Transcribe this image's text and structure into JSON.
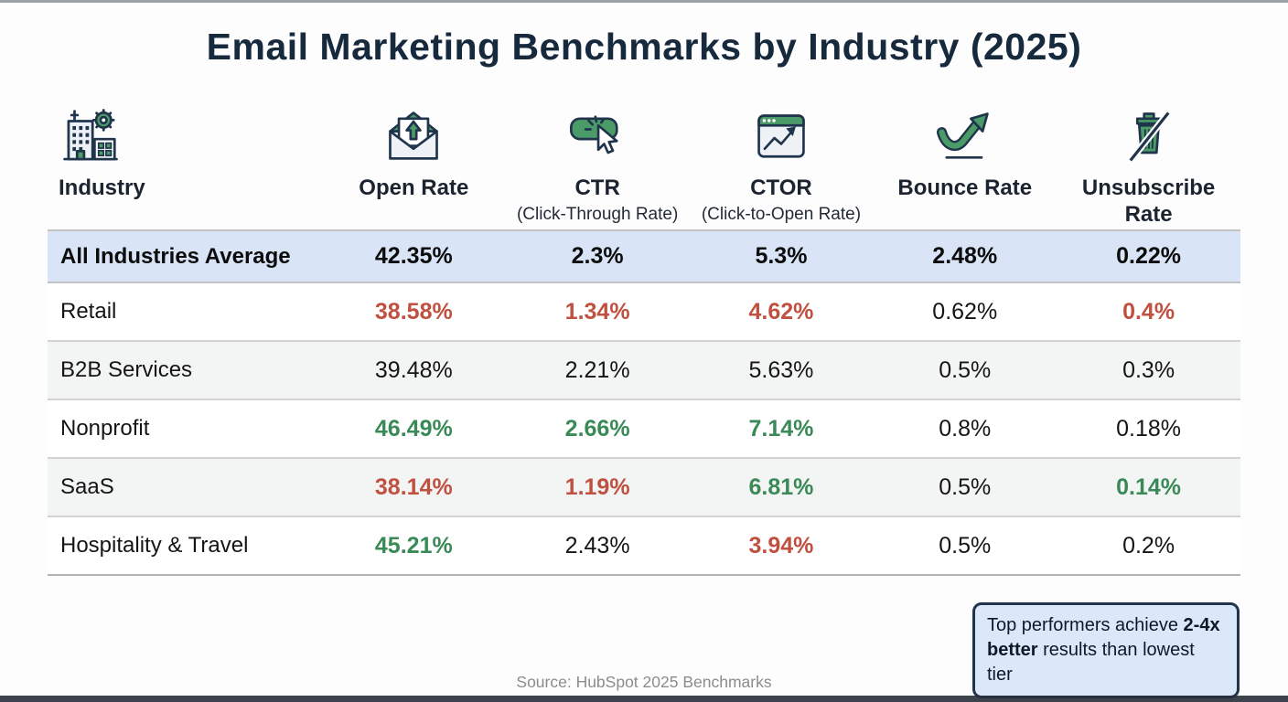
{
  "title": "Email Marketing Benchmarks by Industry (2025)",
  "columns": [
    {
      "label": "Industry",
      "icon": "industry-buildings-icon"
    },
    {
      "label": "Open Rate",
      "icon": "open-envelope-arrow-icon"
    },
    {
      "label": "CTR",
      "sublabel": "(Click-Through Rate)",
      "icon": "click-cursor-button-icon"
    },
    {
      "label": "CTOR",
      "sublabel": "(Click-to-Open Rate)",
      "icon": "browser-chart-icon"
    },
    {
      "label": "Bounce Rate",
      "icon": "bounce-arrow-icon"
    },
    {
      "label": "Unsubscribe Rate",
      "icon": "trash-slash-icon"
    }
  ],
  "rows": [
    {
      "industry": "All Industries Average",
      "highlight": true,
      "shade": false,
      "values": [
        {
          "v": "42.35%",
          "c": "avg"
        },
        {
          "v": "2.3%",
          "c": "avg"
        },
        {
          "v": "5.3%",
          "c": "avg"
        },
        {
          "v": "2.48%",
          "c": "avg"
        },
        {
          "v": "0.22%",
          "c": "avg"
        }
      ]
    },
    {
      "industry": "Retail",
      "highlight": false,
      "shade": false,
      "values": [
        {
          "v": "38.58%",
          "c": "bad"
        },
        {
          "v": "1.34%",
          "c": "bad"
        },
        {
          "v": "4.62%",
          "c": "bad"
        },
        {
          "v": "0.62%",
          "c": "neutral"
        },
        {
          "v": "0.4%",
          "c": "bad"
        }
      ]
    },
    {
      "industry": "B2B Services",
      "highlight": false,
      "shade": true,
      "values": [
        {
          "v": "39.48%",
          "c": "neutral"
        },
        {
          "v": "2.21%",
          "c": "neutral"
        },
        {
          "v": "5.63%",
          "c": "neutral"
        },
        {
          "v": "0.5%",
          "c": "neutral"
        },
        {
          "v": "0.3%",
          "c": "neutral"
        }
      ]
    },
    {
      "industry": "Nonprofit",
      "highlight": false,
      "shade": false,
      "values": [
        {
          "v": "46.49%",
          "c": "good"
        },
        {
          "v": "2.66%",
          "c": "good"
        },
        {
          "v": "7.14%",
          "c": "good"
        },
        {
          "v": "0.8%",
          "c": "neutral"
        },
        {
          "v": "0.18%",
          "c": "neutral"
        }
      ]
    },
    {
      "industry": "SaaS",
      "highlight": false,
      "shade": true,
      "values": [
        {
          "v": "38.14%",
          "c": "bad"
        },
        {
          "v": "1.19%",
          "c": "bad"
        },
        {
          "v": "6.81%",
          "c": "good"
        },
        {
          "v": "0.5%",
          "c": "neutral"
        },
        {
          "v": "0.14%",
          "c": "good"
        }
      ]
    },
    {
      "industry": "Hospitality & Travel",
      "highlight": false,
      "shade": false,
      "values": [
        {
          "v": "45.21%",
          "c": "good"
        },
        {
          "v": "2.43%",
          "c": "neutral"
        },
        {
          "v": "3.94%",
          "c": "bad"
        },
        {
          "v": "0.5%",
          "c": "neutral"
        },
        {
          "v": "0.2%",
          "c": "neutral"
        }
      ]
    }
  ],
  "note": {
    "prefix": "Top performers achieve ",
    "bold": "2-4x better",
    "suffix": " results than lowest tier"
  },
  "source": "Source: HubSpot 2025 Benchmarks",
  "colors": {
    "navy": "#20344c",
    "green_text": "#3a8a58",
    "red_text": "#c0503f",
    "icon_green": "#4b9b68",
    "highlight_row_bg": "#d9e5f7",
    "alt_row_bg": "#f3f4f4",
    "note_bg": "#dbe8fa",
    "title_color": "#16293d",
    "source_color": "#8c8c8c"
  },
  "chart_data": {
    "type": "table",
    "title": "Email Marketing Benchmarks by Industry (2025)",
    "columns": [
      "Industry",
      "Open Rate",
      "CTR (Click-Through Rate)",
      "CTOR (Click-to-Open Rate)",
      "Bounce Rate",
      "Unsubscribe Rate"
    ],
    "rows": [
      [
        "All Industries Average",
        "42.35%",
        "2.3%",
        "5.3%",
        "2.48%",
        "0.22%"
      ],
      [
        "Retail",
        "38.58%",
        "1.34%",
        "4.62%",
        "0.62%",
        "0.4%"
      ],
      [
        "B2B Services",
        "39.48%",
        "2.21%",
        "5.63%",
        "0.5%",
        "0.3%"
      ],
      [
        "Nonprofit",
        "46.49%",
        "2.66%",
        "7.14%",
        "0.8%",
        "0.18%"
      ],
      [
        "SaaS",
        "38.14%",
        "1.19%",
        "6.81%",
        "0.5%",
        "0.14%"
      ],
      [
        "Hospitality & Travel",
        "45.21%",
        "2.43%",
        "3.94%",
        "0.5%",
        "0.2%"
      ]
    ],
    "annotations": [
      "Top performers achieve 2-4x better results than lowest tier"
    ],
    "source": "Source: HubSpot 2025 Benchmarks",
    "color_coding": "green = above-average performer, red = below-average performer, black = neutral"
  }
}
